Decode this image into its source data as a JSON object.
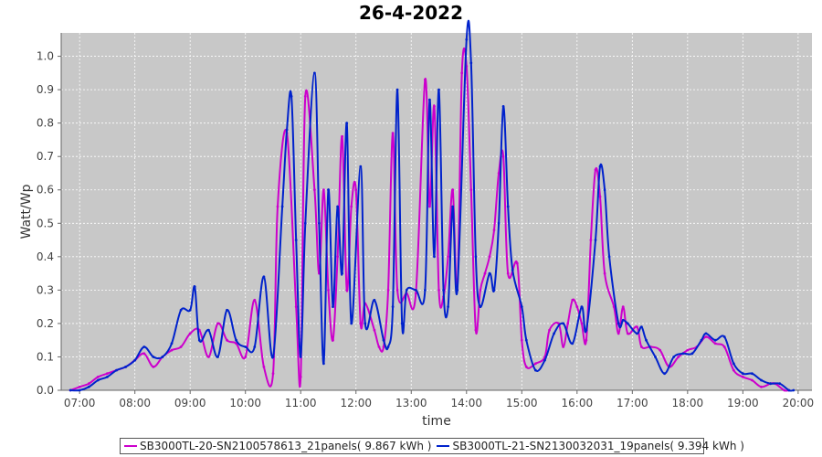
{
  "chart_data": {
    "type": "line",
    "title": "26-4-2022",
    "xlabel": "time",
    "ylabel": "Watt/Wp",
    "xlim": [
      "06:40",
      "20:15"
    ],
    "ylim": [
      0,
      1.07
    ],
    "x_ticks": [
      "07:00",
      "08:00",
      "09:00",
      "10:00",
      "11:00",
      "12:00",
      "13:00",
      "14:00",
      "15:00",
      "16:00",
      "17:00",
      "18:00",
      "19:00",
      "20:00"
    ],
    "y_ticks": [
      0.0,
      0.1,
      0.2,
      0.3,
      0.4,
      0.5,
      0.6,
      0.7,
      0.8,
      0.9,
      1.0
    ],
    "y_tick_labels": [
      "0.0",
      "0.1",
      "0.2",
      "0.3",
      "0.4",
      "0.5",
      "0.6",
      "0.7",
      "0.8",
      "0.9",
      "1.0"
    ],
    "grid": true,
    "legend_position": "bottom",
    "series": [
      {
        "name": "SB3000TL-20-SN2100578613_21panels( 9.867 kWh )",
        "color": "#cc00cc",
        "points": [
          [
            "06:50",
            0.0
          ],
          [
            "07:00",
            0.01
          ],
          [
            "07:10",
            0.02
          ],
          [
            "07:20",
            0.04
          ],
          [
            "07:30",
            0.05
          ],
          [
            "07:40",
            0.06
          ],
          [
            "07:50",
            0.07
          ],
          [
            "08:00",
            0.09
          ],
          [
            "08:10",
            0.11
          ],
          [
            "08:20",
            0.07
          ],
          [
            "08:30",
            0.1
          ],
          [
            "08:40",
            0.12
          ],
          [
            "08:50",
            0.13
          ],
          [
            "09:00",
            0.17
          ],
          [
            "09:10",
            0.18
          ],
          [
            "09:20",
            0.1
          ],
          [
            "09:30",
            0.2
          ],
          [
            "09:40",
            0.15
          ],
          [
            "09:50",
            0.14
          ],
          [
            "10:00",
            0.1
          ],
          [
            "10:10",
            0.27
          ],
          [
            "10:20",
            0.07
          ],
          [
            "10:30",
            0.05
          ],
          [
            "10:35",
            0.55
          ],
          [
            "10:45",
            0.77
          ],
          [
            "10:55",
            0.25
          ],
          [
            "11:00",
            0.04
          ],
          [
            "11:05",
            0.88
          ],
          [
            "11:15",
            0.6
          ],
          [
            "11:20",
            0.35
          ],
          [
            "11:25",
            0.6
          ],
          [
            "11:30",
            0.3
          ],
          [
            "11:35",
            0.15
          ],
          [
            "11:40",
            0.4
          ],
          [
            "11:45",
            0.76
          ],
          [
            "11:50",
            0.3
          ],
          [
            "11:55",
            0.55
          ],
          [
            "12:00",
            0.6
          ],
          [
            "12:05",
            0.2
          ],
          [
            "12:10",
            0.26
          ],
          [
            "12:20",
            0.18
          ],
          [
            "12:25",
            0.13
          ],
          [
            "12:30",
            0.13
          ],
          [
            "12:35",
            0.3
          ],
          [
            "12:40",
            0.77
          ],
          [
            "12:45",
            0.3
          ],
          [
            "12:55",
            0.29
          ],
          [
            "13:05",
            0.29
          ],
          [
            "13:15",
            0.93
          ],
          [
            "13:20",
            0.55
          ],
          [
            "13:25",
            0.85
          ],
          [
            "13:30",
            0.3
          ],
          [
            "13:35",
            0.28
          ],
          [
            "13:40",
            0.4
          ],
          [
            "13:45",
            0.6
          ],
          [
            "13:50",
            0.3
          ],
          [
            "13:55",
            0.95
          ],
          [
            "14:00",
            0.97
          ],
          [
            "14:05",
            0.6
          ],
          [
            "14:10",
            0.18
          ],
          [
            "14:15",
            0.3
          ],
          [
            "14:20",
            0.35
          ],
          [
            "14:25",
            0.4
          ],
          [
            "14:30",
            0.48
          ],
          [
            "14:35",
            0.65
          ],
          [
            "14:40",
            0.7
          ],
          [
            "14:45",
            0.35
          ],
          [
            "14:55",
            0.38
          ],
          [
            "15:00",
            0.15
          ],
          [
            "15:05",
            0.07
          ],
          [
            "15:15",
            0.08
          ],
          [
            "15:25",
            0.1
          ],
          [
            "15:30",
            0.18
          ],
          [
            "15:40",
            0.2
          ],
          [
            "15:45",
            0.13
          ],
          [
            "15:50",
            0.2
          ],
          [
            "15:55",
            0.27
          ],
          [
            "16:00",
            0.25
          ],
          [
            "16:05",
            0.2
          ],
          [
            "16:10",
            0.15
          ],
          [
            "16:15",
            0.45
          ],
          [
            "16:20",
            0.66
          ],
          [
            "16:25",
            0.58
          ],
          [
            "16:30",
            0.35
          ],
          [
            "16:40",
            0.25
          ],
          [
            "16:45",
            0.17
          ],
          [
            "16:50",
            0.25
          ],
          [
            "16:55",
            0.17
          ],
          [
            "17:05",
            0.19
          ],
          [
            "17:10",
            0.13
          ],
          [
            "17:20",
            0.13
          ],
          [
            "17:30",
            0.12
          ],
          [
            "17:40",
            0.07
          ],
          [
            "17:50",
            0.1
          ],
          [
            "18:00",
            0.12
          ],
          [
            "18:10",
            0.13
          ],
          [
            "18:20",
            0.16
          ],
          [
            "18:30",
            0.14
          ],
          [
            "18:40",
            0.13
          ],
          [
            "18:50",
            0.06
          ],
          [
            "19:00",
            0.04
          ],
          [
            "19:10",
            0.03
          ],
          [
            "19:20",
            0.01
          ],
          [
            "19:30",
            0.02
          ],
          [
            "19:35",
            0.02
          ],
          [
            "19:45",
            0.0
          ],
          [
            "19:50",
            0.0
          ]
        ]
      },
      {
        "name": "SB3000TL-21-SN2130032031_19panels( 9.394 kWh )",
        "color": "#0022cc",
        "points": [
          [
            "06:50",
            0.0
          ],
          [
            "07:00",
            0.0
          ],
          [
            "07:10",
            0.01
          ],
          [
            "07:20",
            0.03
          ],
          [
            "07:30",
            0.04
          ],
          [
            "07:40",
            0.06
          ],
          [
            "07:50",
            0.07
          ],
          [
            "08:00",
            0.09
          ],
          [
            "08:10",
            0.13
          ],
          [
            "08:20",
            0.1
          ],
          [
            "08:30",
            0.1
          ],
          [
            "08:40",
            0.14
          ],
          [
            "08:50",
            0.24
          ],
          [
            "09:00",
            0.24
          ],
          [
            "09:05",
            0.31
          ],
          [
            "09:10",
            0.15
          ],
          [
            "09:20",
            0.18
          ],
          [
            "09:30",
            0.1
          ],
          [
            "09:40",
            0.24
          ],
          [
            "09:50",
            0.15
          ],
          [
            "10:00",
            0.13
          ],
          [
            "10:10",
            0.13
          ],
          [
            "10:20",
            0.34
          ],
          [
            "10:30",
            0.1
          ],
          [
            "10:40",
            0.55
          ],
          [
            "10:45",
            0.78
          ],
          [
            "10:50",
            0.88
          ],
          [
            "10:55",
            0.45
          ],
          [
            "11:00",
            0.1
          ],
          [
            "11:05",
            0.5
          ],
          [
            "11:15",
            0.95
          ],
          [
            "11:20",
            0.5
          ],
          [
            "11:25",
            0.08
          ],
          [
            "11:30",
            0.6
          ],
          [
            "11:35",
            0.25
          ],
          [
            "11:40",
            0.55
          ],
          [
            "11:45",
            0.35
          ],
          [
            "11:50",
            0.8
          ],
          [
            "11:55",
            0.2
          ],
          [
            "12:05",
            0.67
          ],
          [
            "12:10",
            0.2
          ],
          [
            "12:20",
            0.27
          ],
          [
            "12:30",
            0.15
          ],
          [
            "12:35",
            0.13
          ],
          [
            "12:40",
            0.25
          ],
          [
            "12:45",
            0.9
          ],
          [
            "12:50",
            0.2
          ],
          [
            "12:55",
            0.3
          ],
          [
            "13:05",
            0.3
          ],
          [
            "13:15",
            0.3
          ],
          [
            "13:20",
            0.87
          ],
          [
            "13:25",
            0.4
          ],
          [
            "13:30",
            0.9
          ],
          [
            "13:35",
            0.3
          ],
          [
            "13:40",
            0.25
          ],
          [
            "13:45",
            0.55
          ],
          [
            "13:50",
            0.3
          ],
          [
            "14:00",
            1.05
          ],
          [
            "14:05",
            0.98
          ],
          [
            "14:10",
            0.4
          ],
          [
            "14:15",
            0.25
          ],
          [
            "14:25",
            0.35
          ],
          [
            "14:30",
            0.3
          ],
          [
            "14:35",
            0.5
          ],
          [
            "14:40",
            0.85
          ],
          [
            "14:45",
            0.55
          ],
          [
            "14:50",
            0.36
          ],
          [
            "15:00",
            0.25
          ],
          [
            "15:05",
            0.15
          ],
          [
            "15:15",
            0.06
          ],
          [
            "15:25",
            0.09
          ],
          [
            "15:35",
            0.17
          ],
          [
            "15:45",
            0.2
          ],
          [
            "15:55",
            0.14
          ],
          [
            "16:05",
            0.25
          ],
          [
            "16:10",
            0.18
          ],
          [
            "16:20",
            0.45
          ],
          [
            "16:25",
            0.67
          ],
          [
            "16:30",
            0.6
          ],
          [
            "16:35",
            0.4
          ],
          [
            "16:45",
            0.2
          ],
          [
            "16:50",
            0.21
          ],
          [
            "16:55",
            0.2
          ],
          [
            "17:05",
            0.17
          ],
          [
            "17:10",
            0.19
          ],
          [
            "17:15",
            0.15
          ],
          [
            "17:25",
            0.1
          ],
          [
            "17:35",
            0.05
          ],
          [
            "17:45",
            0.1
          ],
          [
            "17:55",
            0.11
          ],
          [
            "18:05",
            0.11
          ],
          [
            "18:15",
            0.15
          ],
          [
            "18:20",
            0.17
          ],
          [
            "18:30",
            0.15
          ],
          [
            "18:40",
            0.16
          ],
          [
            "18:50",
            0.08
          ],
          [
            "19:00",
            0.05
          ],
          [
            "19:10",
            0.05
          ],
          [
            "19:20",
            0.03
          ],
          [
            "19:30",
            0.02
          ],
          [
            "19:40",
            0.02
          ],
          [
            "19:50",
            0.0
          ],
          [
            "19:55",
            0.0
          ]
        ]
      }
    ]
  }
}
